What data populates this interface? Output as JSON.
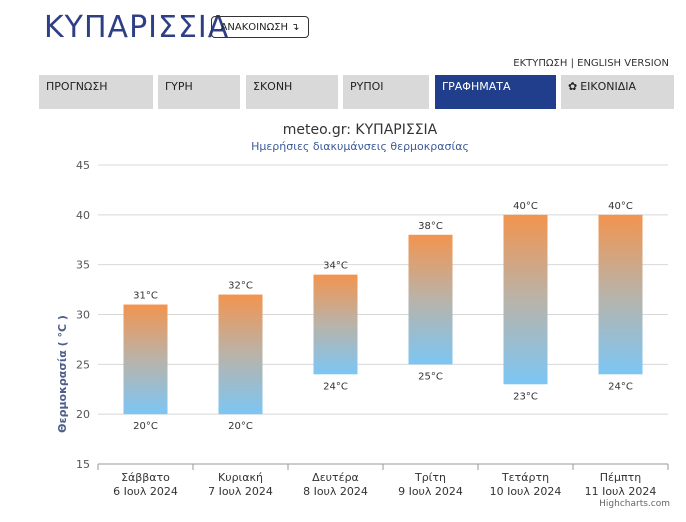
{
  "header": {
    "city_title": "ΚΥΠΑΡΙΣΣΙΑ",
    "announce_label": "ΑΝΑΚΟΙΝΩΣΗ",
    "announce_arrow": "↴",
    "print_link": "ΕΚΤΥΠΩΣΗ",
    "separator": "|",
    "english_link": "ENGLISH VERSION"
  },
  "tabs": [
    {
      "label": "ΠΡΟΓΝΩΣΗ",
      "active": false
    },
    {
      "label": "ΓΥΡΗ",
      "active": false
    },
    {
      "label": "ΣΚΟΝΗ",
      "active": false
    },
    {
      "label": "ΡΥΠΟΙ",
      "active": false
    },
    {
      "label": "ΓΡΑΦΗΜΑΤΑ",
      "active": true
    },
    {
      "label": "ΕΙΚΟΝΙΔΙΑ",
      "active": false,
      "icon": "gear-icon"
    }
  ],
  "colors": {
    "accent": "#203e8b",
    "title": "#2f3f86",
    "tab_bg": "#d9d9d9",
    "bar_top": "#f2944f",
    "bar_bottom": "#7cc6f4"
  },
  "chart_data": {
    "type": "columnrange",
    "title": "meteo.gr: ΚΥΠΑΡΙΣΣΙΑ",
    "subtitle": "Ημερήσιες διακυμάνσεις θερμοκρασίας",
    "ylabel": "Θερμοκρασία ( °C )",
    "ylim": [
      15,
      45
    ],
    "yticks": [
      15,
      20,
      25,
      30,
      35,
      40,
      45
    ],
    "grid": true,
    "categories": [
      {
        "day": "Σάββατο",
        "date": "6 Ιουλ 2024"
      },
      {
        "day": "Κυριακή",
        "date": "7 Ιουλ 2024"
      },
      {
        "day": "Δευτέρα",
        "date": "8 Ιουλ 2024"
      },
      {
        "day": "Τρίτη",
        "date": "9 Ιουλ 2024"
      },
      {
        "day": "Τετάρτη",
        "date": "10 Ιουλ 2024"
      },
      {
        "day": "Πέμπτη",
        "date": "11 Ιουλ 2024"
      }
    ],
    "low": [
      20,
      20,
      24,
      25,
      23,
      24
    ],
    "high": [
      31,
      32,
      34,
      38,
      40,
      40
    ],
    "unit": "°C",
    "credit": "Highcharts.com"
  }
}
